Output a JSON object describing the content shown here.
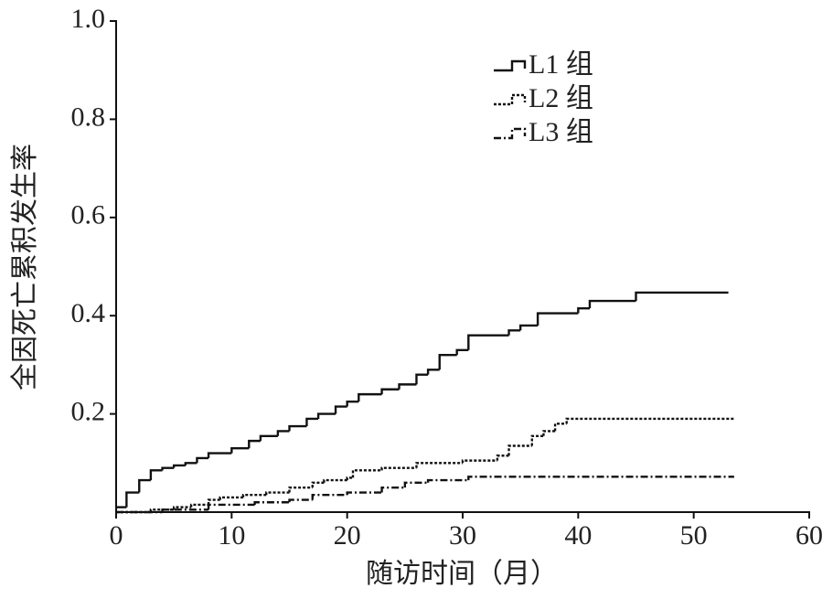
{
  "chart_data": {
    "type": "step",
    "x_label": "随访时间（月）",
    "y_label": "全因死亡累积发生率",
    "xlim": [
      0,
      60
    ],
    "xticks": [
      0,
      10,
      20,
      30,
      40,
      50,
      60
    ],
    "ylim": [
      0,
      1
    ],
    "yticks": [
      0.2,
      0.4,
      0.6,
      0.8,
      {
        "value": 1,
        "label": "1.0"
      }
    ],
    "legend": "top-right",
    "series": [
      {
        "name": "L1 组",
        "color": "#111111",
        "linestyle": "solid",
        "x": [
          0,
          0.9,
          2,
          3,
          4,
          5,
          6,
          7,
          8,
          10,
          11.5,
          12.5,
          14,
          15,
          16.5,
          17.5,
          19,
          20,
          21,
          23,
          24.5,
          26,
          27,
          28,
          29.5,
          30.5,
          34,
          35,
          36.5,
          40,
          41,
          45,
          53
        ],
        "values": [
          0.01,
          0.04,
          0.065,
          0.085,
          0.09,
          0.095,
          0.1,
          0.11,
          0.12,
          0.13,
          0.145,
          0.155,
          0.165,
          0.175,
          0.19,
          0.2,
          0.215,
          0.225,
          0.24,
          0.25,
          0.26,
          0.28,
          0.29,
          0.32,
          0.33,
          0.36,
          0.37,
          0.38,
          0.405,
          0.415,
          0.43,
          0.447,
          0.447
        ]
      },
      {
        "name": "L2 组",
        "color": "#111111",
        "linestyle": "dotted",
        "x": [
          0,
          3,
          5,
          6.5,
          8,
          9,
          11,
          13,
          15,
          17,
          18,
          20,
          20.5,
          23,
          26,
          30,
          33,
          34,
          36,
          37,
          38,
          39,
          53.5
        ],
        "values": [
          0,
          0.005,
          0.01,
          0.015,
          0.025,
          0.03,
          0.035,
          0.04,
          0.05,
          0.06,
          0.065,
          0.07,
          0.085,
          0.09,
          0.1,
          0.105,
          0.115,
          0.135,
          0.155,
          0.165,
          0.18,
          0.19,
          0.19
        ]
      },
      {
        "name": "L3 组",
        "color": "#111111",
        "linestyle": "dashdot",
        "x": [
          0,
          4,
          8,
          12,
          15,
          17,
          20,
          23,
          25,
          27,
          30.5,
          53.5
        ],
        "values": [
          0,
          0.005,
          0.015,
          0.02,
          0.025,
          0.035,
          0.04,
          0.05,
          0.06,
          0.065,
          0.072,
          0.072
        ]
      }
    ]
  }
}
